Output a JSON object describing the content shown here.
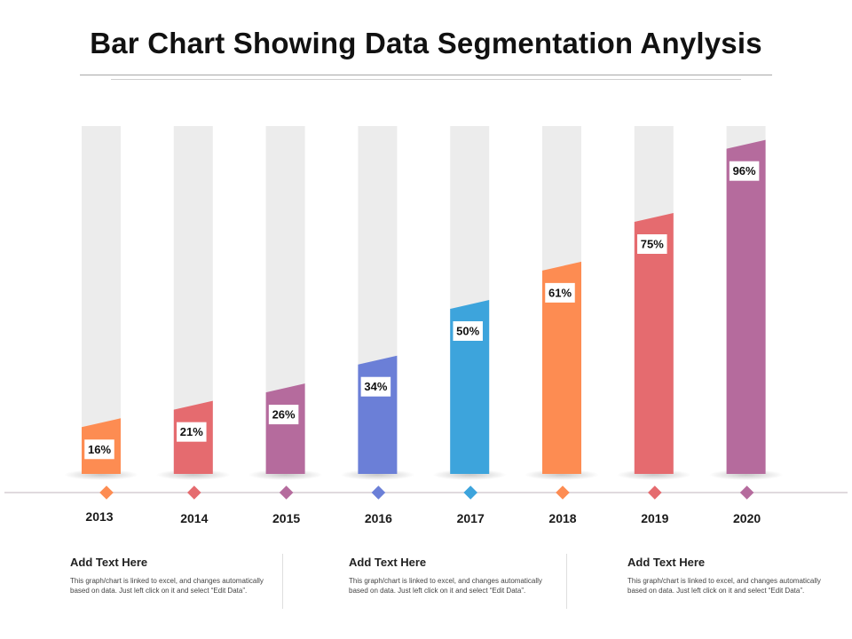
{
  "page": {
    "title": "Bar Chart Showing Data Segmentation Anylysis"
  },
  "colors": {
    "orange": "#fd8c52",
    "red": "#e56b6f",
    "purple": "#b56b9d",
    "indigo": "#6b7fd7",
    "blue": "#3da4dc",
    "track": "#ececec",
    "timeline": "#d5cdd3"
  },
  "chart_data": {
    "type": "bar",
    "title": "Bar Chart Showing Data Segmentation Anylysis",
    "categories": [
      "2013",
      "2014",
      "2015",
      "2016",
      "2017",
      "2018",
      "2019",
      "2020"
    ],
    "values": [
      16,
      21,
      26,
      34,
      50,
      61,
      75,
      96
    ],
    "labels": [
      "16%",
      "21%",
      "26%",
      "34%",
      "50%",
      "61%",
      "75%",
      "96%"
    ],
    "bar_colors": [
      "orange",
      "red",
      "purple",
      "indigo",
      "blue",
      "orange",
      "red",
      "purple"
    ],
    "ylim": [
      0,
      100
    ],
    "xlabel": "",
    "ylabel": "",
    "grid": false,
    "legend": "none"
  },
  "footer": {
    "items": [
      {
        "heading": "Add Text Here",
        "body": "This graph/chart is linked to excel, and changes automatically based on data. Just left click on it and select “Edit Data”."
      },
      {
        "heading": "Add Text Here",
        "body": "This graph/chart is linked to excel, and changes automatically based on data. Just left click on it and select “Edit Data”."
      },
      {
        "heading": "Add Text Here",
        "body": "This graph/chart is linked to excel, and changes automatically based on data. Just left click on it and select “Edit Data”."
      }
    ]
  }
}
